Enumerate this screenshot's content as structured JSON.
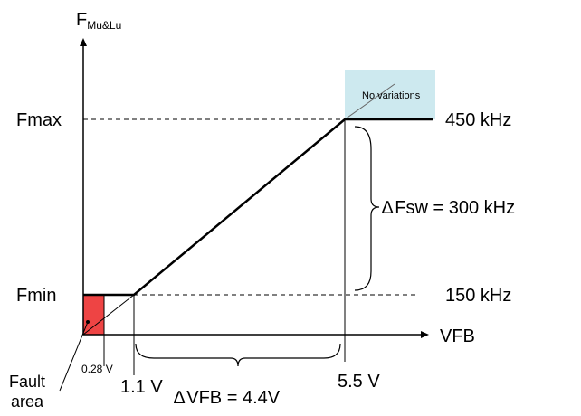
{
  "y_axis": {
    "label_main": "F",
    "label_sub": "Mu&Lu"
  },
  "x_axis": {
    "label": "VFB"
  },
  "levels": {
    "fmax_label": "Fmax",
    "fmin_label": "Fmin",
    "fmax_value": "450 kHz",
    "fmin_value": "150 kHz"
  },
  "x_ticks": {
    "v028": "0.28 V",
    "v11": "1.1 V",
    "v55": "5.5 V"
  },
  "annotations": {
    "no_variations": "No variations",
    "delta_fsw_symbol": "∆",
    "delta_fsw_text": "Fsw = 300 kHz",
    "delta_vfb_symbol": "∆",
    "delta_vfb_text": "VFB = 4.4V",
    "fault_line1": "Fault",
    "fault_line2": "area"
  },
  "colors": {
    "fault_fill": "#ee4444",
    "no_variation_fill": "#cde9ef",
    "curve": "#000000"
  }
}
